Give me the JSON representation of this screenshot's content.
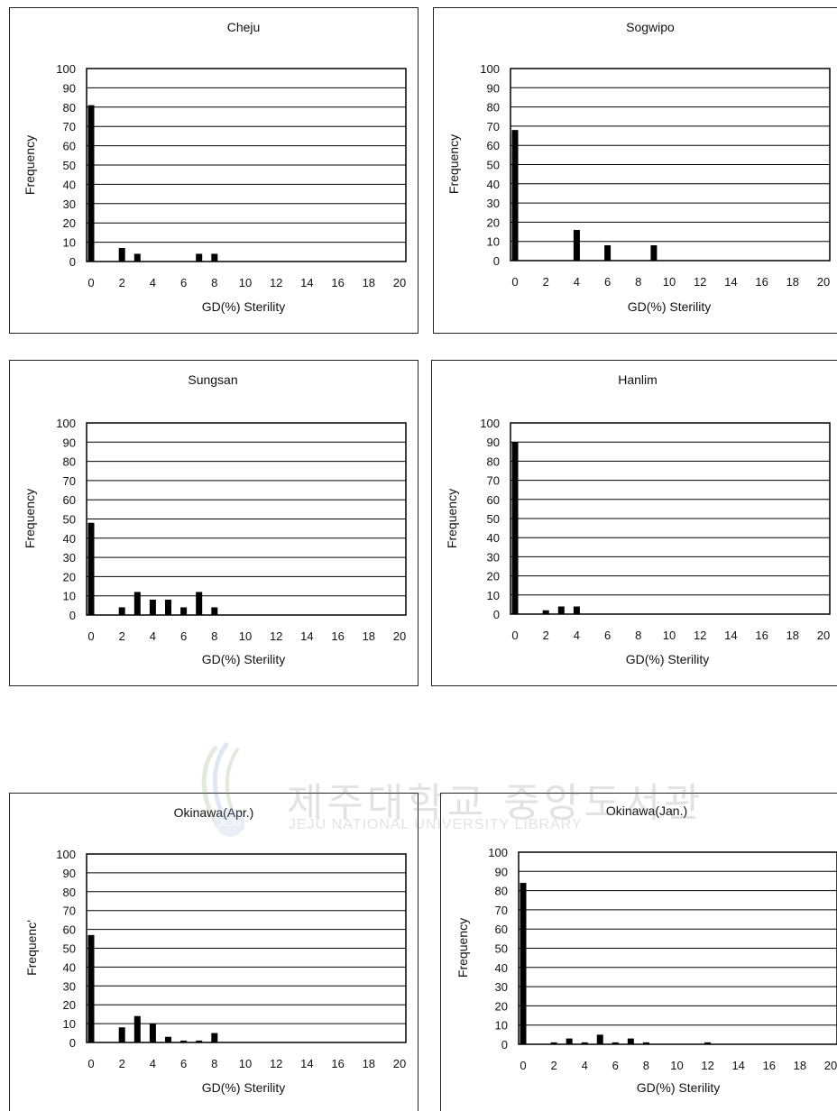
{
  "watermark": {
    "korean": "제주대학교 중앙도서관",
    "english": "JEJU NATIONAL UNIVERSITY LIBRARY",
    "logo_text": "JEJU"
  },
  "chart_data": [
    {
      "type": "bar",
      "title": "Cheju",
      "xlabel": "GD(%) Sterility",
      "ylabel": "Frequency",
      "ylim": [
        0,
        100
      ],
      "xlim": [
        0,
        20
      ],
      "x_ticks": [
        "0",
        "2",
        "4",
        "6",
        "8",
        "10",
        "12",
        "14",
        "16",
        "18",
        "20"
      ],
      "y_ticks": [
        "0",
        "10",
        "20",
        "30",
        "40",
        "50",
        "60",
        "70",
        "80",
        "90",
        "100"
      ],
      "grid": true,
      "series": [
        {
          "x": [
            0,
            2,
            3,
            7,
            8
          ],
          "values": [
            81,
            7,
            4,
            4,
            4
          ]
        }
      ]
    },
    {
      "type": "bar",
      "title": "Sogwipo",
      "xlabel": "GD(%) Sterility",
      "ylabel": "Frequency",
      "ylim": [
        0,
        100
      ],
      "xlim": [
        0,
        20
      ],
      "x_ticks": [
        "0",
        "2",
        "4",
        "6",
        "8",
        "10",
        "12",
        "14",
        "16",
        "18",
        "20"
      ],
      "y_ticks": [
        "0",
        "10",
        "20",
        "30",
        "40",
        "50",
        "60",
        "70",
        "80",
        "90",
        "100"
      ],
      "grid": true,
      "series": [
        {
          "x": [
            0,
            4,
            6,
            9
          ],
          "values": [
            68,
            16,
            8,
            8
          ]
        }
      ]
    },
    {
      "type": "bar",
      "title": "Sungsan",
      "xlabel": "GD(%) Sterility",
      "ylabel": "Frequency",
      "ylim": [
        0,
        100
      ],
      "xlim": [
        0,
        20
      ],
      "x_ticks": [
        "0",
        "2",
        "4",
        "6",
        "8",
        "10",
        "12",
        "14",
        "16",
        "18",
        "20"
      ],
      "y_ticks": [
        "0",
        "10",
        "20",
        "30",
        "40",
        "50",
        "60",
        "70",
        "80",
        "90",
        "100"
      ],
      "grid": true,
      "series": [
        {
          "x": [
            0,
            2,
            3,
            4,
            5,
            6,
            7,
            8
          ],
          "values": [
            48,
            4,
            12,
            8,
            8,
            4,
            12,
            4
          ]
        }
      ]
    },
    {
      "type": "bar",
      "title": "Hanlim",
      "xlabel": "GD(%) Sterility",
      "ylabel": "Frequency",
      "ylim": [
        0,
        100
      ],
      "xlim": [
        0,
        20
      ],
      "x_ticks": [
        "0",
        "2",
        "4",
        "6",
        "8",
        "10",
        "12",
        "14",
        "16",
        "18",
        "20"
      ],
      "y_ticks": [
        "0",
        "10",
        "20",
        "30",
        "40",
        "50",
        "60",
        "70",
        "80",
        "90",
        "100"
      ],
      "grid": true,
      "series": [
        {
          "x": [
            0,
            2,
            3,
            4
          ],
          "values": [
            90,
            2,
            4,
            4
          ]
        }
      ]
    },
    {
      "type": "bar",
      "title": "Okinawa(Apr.)",
      "xlabel": "GD(%) Sterility",
      "ylabel": "Frequenc'",
      "ylim": [
        0,
        100
      ],
      "xlim": [
        0,
        20
      ],
      "x_ticks": [
        "0",
        "2",
        "4",
        "6",
        "8",
        "10",
        "12",
        "14",
        "16",
        "18",
        "20"
      ],
      "y_ticks": [
        "0",
        "10",
        "20",
        "30",
        "40",
        "50",
        "60",
        "70",
        "80",
        "90",
        "100"
      ],
      "grid": true,
      "series": [
        {
          "x": [
            0,
            2,
            3,
            4,
            5,
            6,
            7,
            8
          ],
          "values": [
            57,
            8,
            14,
            10,
            3,
            1,
            1,
            5
          ]
        }
      ]
    },
    {
      "type": "bar",
      "title": "Okinawa(Jan.)",
      "xlabel": "GD(%) Sterility",
      "ylabel": "Frequency",
      "ylim": [
        0,
        100
      ],
      "xlim": [
        0,
        20
      ],
      "x_ticks": [
        "0",
        "2",
        "4",
        "6",
        "8",
        "10",
        "12",
        "14",
        "16",
        "18",
        "20"
      ],
      "y_ticks": [
        "0",
        "10",
        "20",
        "30",
        "40",
        "50",
        "60",
        "70",
        "80",
        "90",
        "100"
      ],
      "grid": true,
      "series": [
        {
          "x": [
            0,
            2,
            3,
            4,
            5,
            6,
            7,
            8,
            12
          ],
          "values": [
            84,
            1,
            3,
            1,
            5,
            1,
            3,
            1,
            1
          ]
        }
      ]
    }
  ]
}
